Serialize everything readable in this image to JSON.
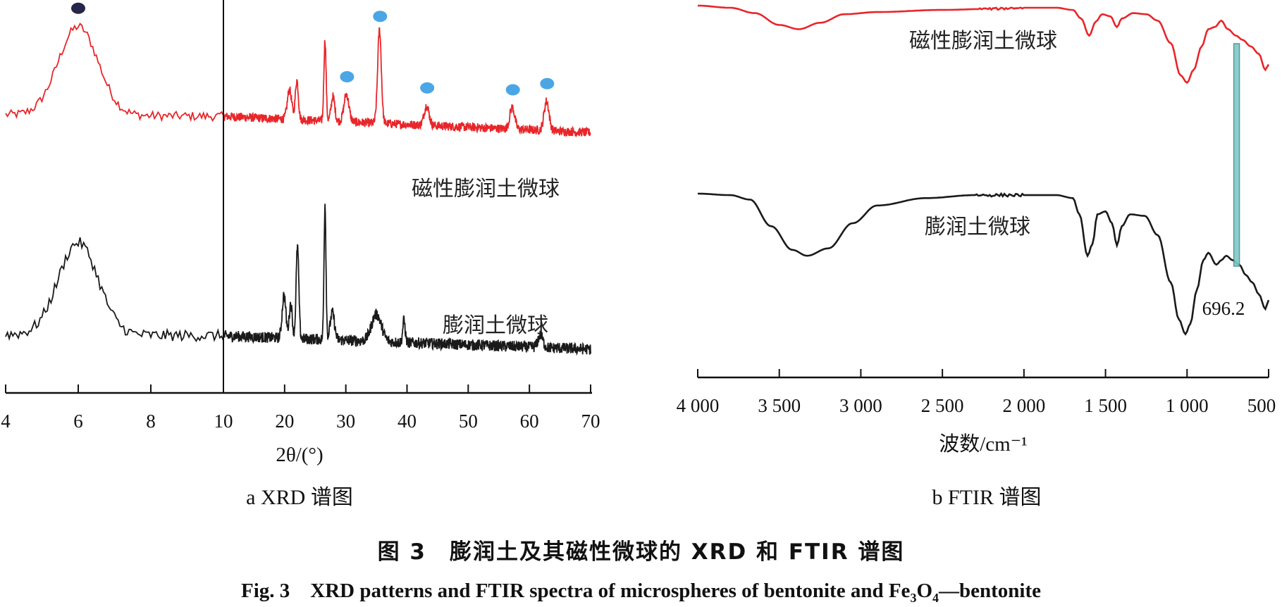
{
  "chart_data": [
    {
      "type": "line",
      "panel_label": "a XRD 谱图",
      "xlabel": "2θ/(°)",
      "x_axis_break_at": 10,
      "x_segments": [
        {
          "range": [
            4,
            10
          ],
          "ticks": [
            "4",
            "6",
            "8",
            "10"
          ]
        },
        {
          "range": [
            10,
            70
          ],
          "ticks": [
            "20",
            "30",
            "40",
            "50",
            "60",
            "70"
          ]
        }
      ],
      "series": [
        {
          "name": "磁性膨润土微球",
          "color": "#e8262a",
          "baseline": 0.3,
          "peaks": [
            [
              6.0,
              0.9,
              0.55
            ],
            [
              20.8,
              0.3,
              0.35
            ],
            [
              22.0,
              0.4,
              0.25
            ],
            [
              26.6,
              0.82,
              0.18
            ],
            [
              27.9,
              0.25,
              0.3
            ],
            [
              30.1,
              0.28,
              0.4
            ],
            [
              35.5,
              0.95,
              0.3
            ],
            [
              43.2,
              0.2,
              0.4
            ],
            [
              57.2,
              0.22,
              0.4
            ],
            [
              62.8,
              0.3,
              0.4
            ]
          ]
        },
        {
          "name": "膨润土微球",
          "color": "#1a1a1a",
          "baseline": 0.2,
          "peaks": [
            [
              6.0,
              0.75,
              0.55
            ],
            [
              19.9,
              0.35,
              0.3
            ],
            [
              21.0,
              0.28,
              0.25
            ],
            [
              22.1,
              0.75,
              0.22
            ],
            [
              26.6,
              1.1,
              0.16
            ],
            [
              27.8,
              0.22,
              0.35
            ],
            [
              35.0,
              0.22,
              0.8
            ],
            [
              39.5,
              0.18,
              0.2
            ],
            [
              61.8,
              0.1,
              0.4
            ]
          ]
        }
      ],
      "markers": [
        {
          "series": "磁性膨润土微球",
          "x": 6.0,
          "color": "#26264a"
        },
        {
          "series": "磁性膨润土微球",
          "x": 30.2,
          "color": "#4ba6e6"
        },
        {
          "series": "磁性膨润土微球",
          "x": 35.6,
          "color": "#4ba6e6"
        },
        {
          "series": "磁性膨润土微球",
          "x": 43.3,
          "color": "#4ba6e6"
        },
        {
          "series": "磁性膨润土微球",
          "x": 57.3,
          "color": "#4ba6e6"
        },
        {
          "series": "磁性膨润土微球",
          "x": 62.9,
          "color": "#4ba6e6"
        }
      ]
    },
    {
      "type": "line",
      "panel_label": "b FTIR 谱图",
      "xlabel": "波数/cm⁻¹",
      "x_reversed": true,
      "xlim": [
        4000,
        500
      ],
      "x_ticks": [
        "4 000",
        "3 500",
        "3 000",
        "2 500",
        "2 000",
        "1 500",
        "1 000",
        "500"
      ],
      "annotation": {
        "text": "696.2",
        "x": 696.2
      },
      "series": [
        {
          "name": "磁性膨润土微球",
          "color": "#e8262a",
          "points": [
            [
              4000,
              1.0
            ],
            [
              3800,
              0.98
            ],
            [
              3650,
              0.93
            ],
            [
              3500,
              0.82
            ],
            [
              3380,
              0.78
            ],
            [
              3250,
              0.84
            ],
            [
              3100,
              0.92
            ],
            [
              2900,
              0.94
            ],
            [
              2500,
              0.96
            ],
            [
              2200,
              0.97
            ],
            [
              2000,
              0.98
            ],
            [
              1800,
              0.98
            ],
            [
              1700,
              0.96
            ],
            [
              1650,
              0.88
            ],
            [
              1600,
              0.72
            ],
            [
              1560,
              0.85
            ],
            [
              1520,
              0.92
            ],
            [
              1470,
              0.9
            ],
            [
              1430,
              0.8
            ],
            [
              1400,
              0.88
            ],
            [
              1330,
              0.93
            ],
            [
              1250,
              0.92
            ],
            [
              1180,
              0.86
            ],
            [
              1100,
              0.65
            ],
            [
              1040,
              0.35
            ],
            [
              1000,
              0.28
            ],
            [
              960,
              0.4
            ],
            [
              910,
              0.62
            ],
            [
              870,
              0.78
            ],
            [
              830,
              0.8
            ],
            [
              790,
              0.86
            ],
            [
              750,
              0.78
            ],
            [
              700,
              0.72
            ],
            [
              660,
              0.68
            ],
            [
              610,
              0.62
            ],
            [
              560,
              0.55
            ],
            [
              520,
              0.4
            ],
            [
              500,
              0.45
            ]
          ]
        },
        {
          "name": "膨润土微球",
          "color": "#1a1a1a",
          "points": [
            [
              4000,
              1.0
            ],
            [
              3800,
              0.99
            ],
            [
              3680,
              0.96
            ],
            [
              3550,
              0.78
            ],
            [
              3420,
              0.62
            ],
            [
              3330,
              0.58
            ],
            [
              3200,
              0.63
            ],
            [
              3050,
              0.8
            ],
            [
              2900,
              0.92
            ],
            [
              2600,
              0.97
            ],
            [
              2300,
              0.99
            ],
            [
              2000,
              0.99
            ],
            [
              1800,
              0.99
            ],
            [
              1700,
              0.97
            ],
            [
              1660,
              0.86
            ],
            [
              1610,
              0.58
            ],
            [
              1580,
              0.66
            ],
            [
              1550,
              0.86
            ],
            [
              1500,
              0.88
            ],
            [
              1460,
              0.8
            ],
            [
              1430,
              0.65
            ],
            [
              1400,
              0.78
            ],
            [
              1350,
              0.86
            ],
            [
              1260,
              0.85
            ],
            [
              1180,
              0.72
            ],
            [
              1100,
              0.4
            ],
            [
              1050,
              0.15
            ],
            [
              1010,
              0.05
            ],
            [
              980,
              0.12
            ],
            [
              940,
              0.35
            ],
            [
              900,
              0.55
            ],
            [
              870,
              0.6
            ],
            [
              820,
              0.52
            ],
            [
              790,
              0.55
            ],
            [
              760,
              0.58
            ],
            [
              720,
              0.55
            ],
            [
              680,
              0.52
            ],
            [
              640,
              0.45
            ],
            [
              600,
              0.4
            ],
            [
              560,
              0.32
            ],
            [
              520,
              0.22
            ],
            [
              500,
              0.28
            ]
          ]
        }
      ]
    }
  ],
  "caption": {
    "cn": "图 3　膨润土及其磁性微球的 XRD 和 FTIR 谱图",
    "en_main": "Fig. 3　XRD patterns and FTIR spectra of microspheres of bentonite and Fe",
    "en_sub3": "3",
    "en_mid": "O",
    "en_sub4": "4",
    "en_tail": "—bentonite"
  }
}
